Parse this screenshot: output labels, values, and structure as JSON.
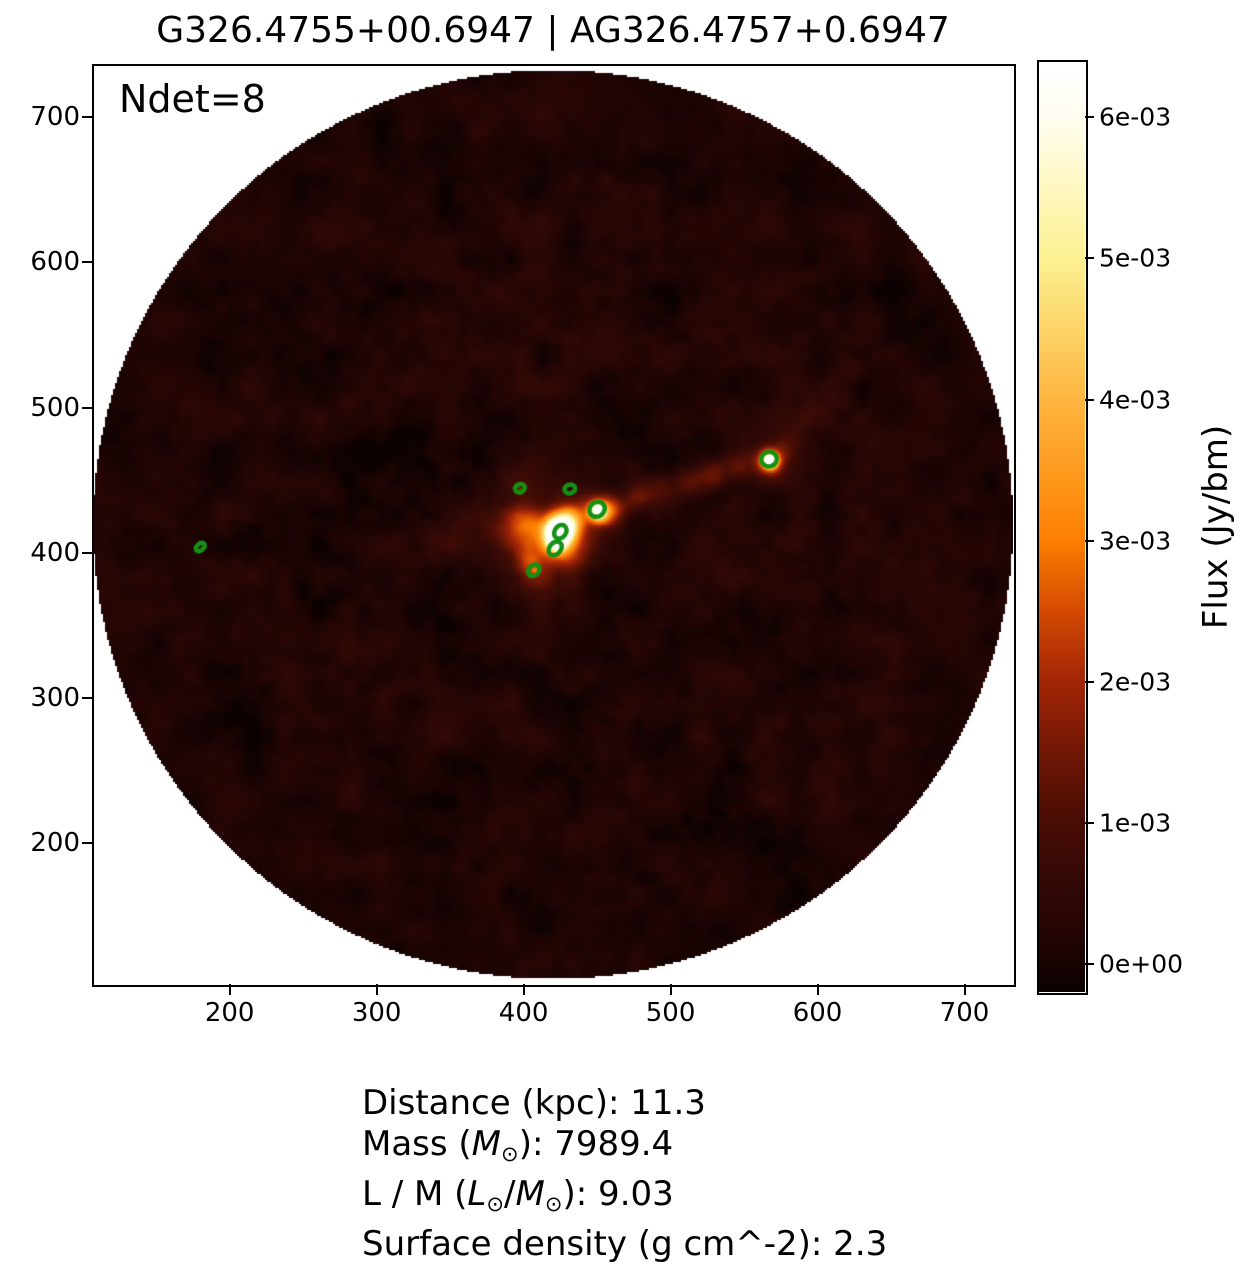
{
  "title": "G326.4755+00.6947 | AG326.4757+0.6947",
  "annotation": {
    "ndet_label": "Ndet=8"
  },
  "colorbar": {
    "label": "Flux (Jy/bm)"
  },
  "stats_lines": [
    [
      {
        "t": "Distance (kpc): 11.3",
        "style": "n"
      }
    ],
    [
      {
        "t": "Mass (",
        "style": "n"
      },
      {
        "t": "M",
        "style": "i"
      },
      {
        "t": "⊙",
        "style": "sub"
      },
      {
        "t": "): 7989.4",
        "style": "n"
      }
    ],
    [
      {
        "t": "L / M (",
        "style": "n"
      },
      {
        "t": "L",
        "style": "i"
      },
      {
        "t": "⊙",
        "style": "sub"
      },
      {
        "t": "/",
        "style": "n"
      },
      {
        "t": "M",
        "style": "i"
      },
      {
        "t": "⊙",
        "style": "sub"
      },
      {
        "t": "): 9.03",
        "style": "n"
      }
    ],
    [
      {
        "t": "Surface density (g cm^-2): 2.3",
        "style": "n"
      }
    ]
  ],
  "chart_data": {
    "type": "heatmap",
    "title": "G326.4755+00.6947 | AG326.4757+0.6947",
    "n_detections": 8,
    "xlim": [
      107,
      733
    ],
    "ylim": [
      103,
      736
    ],
    "x_ticks": [
      {
        "v": 200,
        "label": "200"
      },
      {
        "v": 300,
        "label": "300"
      },
      {
        "v": 400,
        "label": "400"
      },
      {
        "v": 500,
        "label": "500"
      },
      {
        "v": 600,
        "label": "600"
      },
      {
        "v": 700,
        "label": "700"
      }
    ],
    "y_ticks": [
      {
        "v": 200,
        "label": "200"
      },
      {
        "v": 300,
        "label": "300"
      },
      {
        "v": 400,
        "label": "400"
      },
      {
        "v": 500,
        "label": "500"
      },
      {
        "v": 600,
        "label": "600"
      },
      {
        "v": 700,
        "label": "700"
      }
    ],
    "flux_range": [
      -0.0002,
      0.0064
    ],
    "colorbar_ticks": [
      {
        "v": 0,
        "label": "0e+00"
      },
      {
        "v": 0.001,
        "label": "1e-03"
      },
      {
        "v": 0.002,
        "label": "2e-03"
      },
      {
        "v": 0.003,
        "label": "3e-03"
      },
      {
        "v": 0.004,
        "label": "4e-03"
      },
      {
        "v": 0.005,
        "label": "5e-03"
      },
      {
        "v": 0.006,
        "label": "6e-03"
      }
    ],
    "colorbar_label": "Flux (Jy/bm)",
    "colormap_stops": [
      {
        "v": -0.0002,
        "c": "#0b0101"
      },
      {
        "v": 0.0,
        "c": "#190303"
      },
      {
        "v": 0.0005,
        "c": "#300805"
      },
      {
        "v": 0.001,
        "c": "#480d04"
      },
      {
        "v": 0.0015,
        "c": "#711705"
      },
      {
        "v": 0.002,
        "c": "#a22506"
      },
      {
        "v": 0.0025,
        "c": "#d44a02"
      },
      {
        "v": 0.003,
        "c": "#fd7e00"
      },
      {
        "v": 0.0035,
        "c": "#fe9c20"
      },
      {
        "v": 0.004,
        "c": "#feb540"
      },
      {
        "v": 0.0045,
        "c": "#fdd468"
      },
      {
        "v": 0.005,
        "c": "#fcf192"
      },
      {
        "v": 0.0055,
        "c": "#fef8c0"
      },
      {
        "v": 0.006,
        "c": "#fffdf0"
      },
      {
        "v": 0.0064,
        "c": "#ffffff"
      }
    ],
    "field_of_view": {
      "cx": 420,
      "cy": 419.5,
      "r": 313
    },
    "noise": {
      "seed": 7,
      "base": 0.00013,
      "edge_fade": 0.3,
      "octaves": [
        {
          "cell": 28,
          "amp": 0.00012
        },
        {
          "cell": 16,
          "amp": 0.00026
        },
        {
          "cell": 8,
          "amp": 0.00016
        },
        {
          "cell": 4,
          "amp": 9e-05
        }
      ]
    },
    "sources": [
      {
        "x": 423.5,
        "y": 416,
        "a": 0.006,
        "s": 6
      },
      {
        "x": 421.5,
        "y": 407.5,
        "a": 0.0042,
        "s": 4.5
      },
      {
        "x": 423,
        "y": 413,
        "a": 0.0026,
        "s": 11
      },
      {
        "x": 419,
        "y": 413,
        "a": 0.0013,
        "s": 20
      },
      {
        "x": 400,
        "y": 421,
        "a": 0.0014,
        "s": 9
      },
      {
        "x": 390,
        "y": 417,
        "a": 0.0008,
        "s": 13
      },
      {
        "x": 360,
        "y": 414,
        "a": 0.0005,
        "s": 14
      },
      {
        "x": 392,
        "y": 450,
        "a": 0.0006,
        "s": 10
      },
      {
        "x": 403,
        "y": 396,
        "a": 0.0011,
        "s": 7
      },
      {
        "x": 408,
        "y": 385,
        "a": 0.0007,
        "s": 8
      },
      {
        "x": 430,
        "y": 424,
        "a": 0.0022,
        "s": 7
      },
      {
        "x": 450,
        "y": 430,
        "a": 0.0055,
        "s": 3.6
      },
      {
        "x": 450,
        "y": 430,
        "a": 0.002,
        "s": 8
      },
      {
        "x": 455,
        "y": 425,
        "a": 0.001,
        "s": 6
      },
      {
        "x": 567,
        "y": 464.5,
        "a": 0.0062,
        "s": 3.2
      },
      {
        "x": 567,
        "y": 464,
        "a": 0.0026,
        "s": 6.5
      },
      {
        "x": 567,
        "y": 464,
        "a": 0.0009,
        "s": 12
      },
      {
        "x": 462,
        "y": 433,
        "a": 0.0011,
        "s": 6
      },
      {
        "x": 477,
        "y": 439,
        "a": 0.0012,
        "s": 7
      },
      {
        "x": 494,
        "y": 445,
        "a": 0.0009,
        "s": 7
      },
      {
        "x": 511,
        "y": 450,
        "a": 0.001,
        "s": 7
      },
      {
        "x": 528,
        "y": 455,
        "a": 0.0012,
        "s": 7
      },
      {
        "x": 545,
        "y": 459,
        "a": 0.001,
        "s": 7
      },
      {
        "x": 582,
        "y": 479,
        "a": 0.0005,
        "s": 7
      },
      {
        "x": 596,
        "y": 496,
        "a": 0.00045,
        "s": 8
      },
      {
        "x": 610,
        "y": 513,
        "a": 0.0004,
        "s": 9
      },
      {
        "x": 622,
        "y": 529,
        "a": 0.00035,
        "s": 9
      },
      {
        "x": 397,
        "y": 444,
        "a": 0.001,
        "s": 1.8
      },
      {
        "x": 407,
        "y": 388,
        "a": 0.0011,
        "s": 2
      },
      {
        "x": 180,
        "y": 404,
        "a": 0.0006,
        "s": 2
      },
      {
        "x": 412,
        "y": 375,
        "a": 0.0005,
        "s": 10
      },
      {
        "x": 430,
        "y": 398,
        "a": 0.0007,
        "s": 9
      }
    ],
    "detections": [
      {
        "x": 397.5,
        "y": 444.5,
        "rx": 3.4,
        "ry": 2.8,
        "angle": 20
      },
      {
        "x": 431.5,
        "y": 444,
        "rx": 3.7,
        "ry": 3.0,
        "angle": 15
      },
      {
        "x": 450,
        "y": 430,
        "rx": 5.5,
        "ry": 4.9,
        "angle": 40
      },
      {
        "x": 425,
        "y": 414.5,
        "rx": 5.0,
        "ry": 3.9,
        "angle": 55
      },
      {
        "x": 421.5,
        "y": 403,
        "rx": 5.2,
        "ry": 3.9,
        "angle": 50
      },
      {
        "x": 407,
        "y": 388,
        "rx": 4.4,
        "ry": 3.4,
        "angle": 45
      },
      {
        "x": 567,
        "y": 464.5,
        "rx": 5.3,
        "ry": 5.0,
        "angle": 15
      },
      {
        "x": 180,
        "y": 404,
        "rx": 3.5,
        "ry": 2.3,
        "angle": 40
      }
    ],
    "marker": {
      "color": "#149114",
      "linewidth": 4.5
    }
  }
}
